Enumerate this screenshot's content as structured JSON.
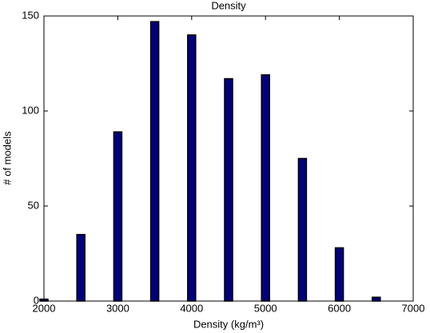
{
  "chart_data": {
    "type": "bar",
    "title": "Density",
    "xlabel": "Density (kg/m³)",
    "ylabel": "# of models",
    "x": [
      2000,
      2500,
      3000,
      3500,
      4000,
      4500,
      5000,
      5500,
      6000,
      6500
    ],
    "values": [
      1,
      35,
      89,
      147,
      140,
      117,
      119,
      75,
      28,
      2
    ],
    "color": "#00007f",
    "edgecolor": "#000000",
    "xlim": [
      2000,
      7000
    ],
    "xticks": [
      2000,
      3000,
      4000,
      5000,
      6000,
      7000
    ],
    "ylim": [
      0,
      150
    ],
    "yticks": [
      0,
      50,
      100,
      150
    ],
    "grid": false
  }
}
